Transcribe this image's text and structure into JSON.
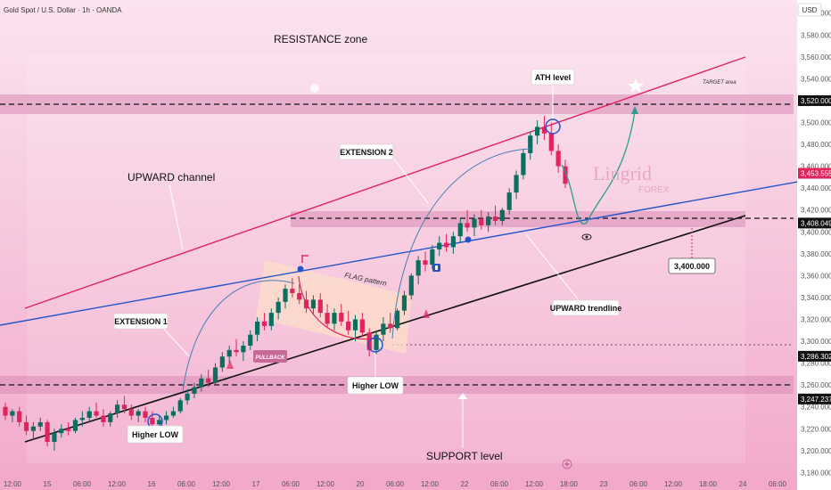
{
  "header": {
    "symbol": "Gold Spot / U.S. Dollar · 1h · OANDA",
    "currency": "USD"
  },
  "chart_data": {
    "type": "candlestick",
    "yaxis": {
      "ticks": [
        3180,
        3200,
        3220,
        3240,
        3260,
        3280,
        3300,
        3320,
        3340,
        3360,
        3380,
        3400,
        3420,
        3440,
        3460,
        3480,
        3500,
        3520,
        3540,
        3560,
        3580,
        3600
      ],
      "tick_labels": [
        "3,180.000",
        "3,200.000",
        "3,220.000",
        "3,240.000",
        "3,260.000",
        "3,280.000",
        "3,300.000",
        "3,320.000",
        "3,340.000",
        "3,360.000",
        "3,380.000",
        "3,400.000",
        "3,420.000",
        "3,440.000",
        "3,460.000",
        "3,480.000",
        "3,500.000",
        "3,520.000",
        "3,540.000",
        "3,560.000",
        "3,580.000",
        "3,600.000"
      ],
      "range": [
        3164,
        3612
      ]
    },
    "xaxis": {
      "labels": [
        "12:00",
        "15",
        "06:00",
        "12:00",
        "16",
        "06:00",
        "12:00",
        "17",
        "06:00",
        "12:00",
        "20",
        "06:00",
        "12:00",
        "22",
        "06:00",
        "12:00",
        "18:00",
        "23",
        "06:00",
        "12:00",
        "18:00",
        "24",
        "06:00"
      ]
    },
    "price_badges": [
      {
        "value": 3520.0,
        "label": "3,520.000",
        "color": "#111111"
      },
      {
        "value": 3453.555,
        "label": "3,453.555",
        "color": "#e0245e"
      },
      {
        "value": 3408.049,
        "label": "3,408.049",
        "color": "#111111"
      },
      {
        "value": 3286.302,
        "label": "3,286.302",
        "color": "#111111"
      },
      {
        "value": 3247.237,
        "label": "3,247.237",
        "color": "#111111"
      }
    ],
    "candles": [
      [
        3240,
        3244,
        3228,
        3232
      ],
      [
        3232,
        3238,
        3226,
        3236
      ],
      [
        3236,
        3240,
        3222,
        3226
      ],
      [
        3226,
        3232,
        3214,
        3218
      ],
      [
        3218,
        3226,
        3210,
        3222
      ],
      [
        3222,
        3230,
        3218,
        3226
      ],
      [
        3226,
        3228,
        3204,
        3208
      ],
      [
        3208,
        3220,
        3200,
        3216
      ],
      [
        3216,
        3224,
        3212,
        3220
      ],
      [
        3220,
        3226,
        3214,
        3218
      ],
      [
        3218,
        3230,
        3216,
        3228
      ],
      [
        3228,
        3236,
        3222,
        3230
      ],
      [
        3230,
        3240,
        3226,
        3236
      ],
      [
        3236,
        3244,
        3230,
        3232
      ],
      [
        3232,
        3238,
        3222,
        3226
      ],
      [
        3226,
        3236,
        3222,
        3234
      ],
      [
        3234,
        3246,
        3230,
        3242
      ],
      [
        3242,
        3250,
        3234,
        3238
      ],
      [
        3238,
        3242,
        3228,
        3232
      ],
      [
        3232,
        3238,
        3226,
        3236
      ],
      [
        3236,
        3240,
        3226,
        3230
      ],
      [
        3230,
        3236,
        3220,
        3224
      ],
      [
        3224,
        3232,
        3218,
        3228
      ],
      [
        3228,
        3236,
        3224,
        3232
      ],
      [
        3232,
        3240,
        3230,
        3236
      ],
      [
        3236,
        3248,
        3234,
        3246
      ],
      [
        3246,
        3256,
        3242,
        3252
      ],
      [
        3252,
        3262,
        3248,
        3258
      ],
      [
        3258,
        3270,
        3254,
        3266
      ],
      [
        3266,
        3274,
        3258,
        3262
      ],
      [
        3262,
        3280,
        3260,
        3276
      ],
      [
        3276,
        3290,
        3272,
        3286
      ],
      [
        3286,
        3296,
        3280,
        3292
      ],
      [
        3292,
        3302,
        3286,
        3290
      ],
      [
        3290,
        3300,
        3282,
        3296
      ],
      [
        3296,
        3310,
        3292,
        3306
      ],
      [
        3306,
        3322,
        3300,
        3318
      ],
      [
        3318,
        3326,
        3310,
        3314
      ],
      [
        3314,
        3330,
        3310,
        3326
      ],
      [
        3326,
        3340,
        3320,
        3336
      ],
      [
        3336,
        3352,
        3330,
        3348
      ],
      [
        3348,
        3358,
        3340,
        3344
      ],
      [
        3344,
        3352,
        3334,
        3338
      ],
      [
        3338,
        3346,
        3326,
        3330
      ],
      [
        3330,
        3342,
        3324,
        3338
      ],
      [
        3338,
        3344,
        3322,
        3326
      ],
      [
        3326,
        3334,
        3312,
        3316
      ],
      [
        3316,
        3330,
        3310,
        3326
      ],
      [
        3326,
        3334,
        3314,
        3318
      ],
      [
        3318,
        3328,
        3306,
        3310
      ],
      [
        3310,
        3324,
        3300,
        3320
      ],
      [
        3320,
        3326,
        3304,
        3308
      ],
      [
        3308,
        3312,
        3286,
        3292
      ],
      [
        3292,
        3310,
        3288,
        3306
      ],
      [
        3306,
        3322,
        3300,
        3316
      ],
      [
        3316,
        3326,
        3308,
        3312
      ],
      [
        3312,
        3330,
        3310,
        3328
      ],
      [
        3328,
        3346,
        3324,
        3342
      ],
      [
        3342,
        3362,
        3338,
        3360
      ],
      [
        3360,
        3378,
        3352,
        3374
      ],
      [
        3374,
        3382,
        3364,
        3370
      ],
      [
        3370,
        3388,
        3366,
        3384
      ],
      [
        3384,
        3396,
        3378,
        3390
      ],
      [
        3390,
        3398,
        3382,
        3386
      ],
      [
        3386,
        3400,
        3380,
        3396
      ],
      [
        3396,
        3412,
        3390,
        3408
      ],
      [
        3408,
        3420,
        3400,
        3404
      ],
      [
        3404,
        3416,
        3396,
        3412
      ],
      [
        3412,
        3420,
        3402,
        3406
      ],
      [
        3406,
        3418,
        3400,
        3414
      ],
      [
        3414,
        3424,
        3406,
        3410
      ],
      [
        3410,
        3422,
        3406,
        3420
      ],
      [
        3420,
        3440,
        3416,
        3436
      ],
      [
        3436,
        3456,
        3430,
        3452
      ],
      [
        3452,
        3476,
        3448,
        3472
      ],
      [
        3472,
        3492,
        3466,
        3488
      ],
      [
        3488,
        3502,
        3480,
        3496
      ],
      [
        3496,
        3506,
        3484,
        3490
      ],
      [
        3490,
        3500,
        3470,
        3474
      ],
      [
        3474,
        3480,
        3454,
        3460
      ],
      [
        3460,
        3466,
        3440,
        3444
      ]
    ],
    "annotations": {
      "resistance_zone": "RESISTANCE zone",
      "target_area": "TARGET area",
      "ath_level": "ATH level",
      "extension_2": "EXTENSION 2",
      "upward_channel": "UPWARD channel",
      "flag_pattern": "FLAG pattern",
      "extension_1": "EXTENSION 1",
      "pullback": "PULLBACK",
      "higher_low_1": "Higher LOW",
      "higher_low_2": "Higher LOW",
      "upward_trendline": "UPWARD trendline",
      "level_3400": "3,400.000",
      "support_level": "SUPPORT level",
      "watermark_main": "Lingrid",
      "watermark_sub": "FOREX"
    },
    "colors": {
      "up": "#0b6e5f",
      "down": "#e0245e",
      "zone": "#d88bb4",
      "channel": "#e0245e",
      "trend_blue": "#2454c9",
      "trendline": "#111111"
    }
  }
}
